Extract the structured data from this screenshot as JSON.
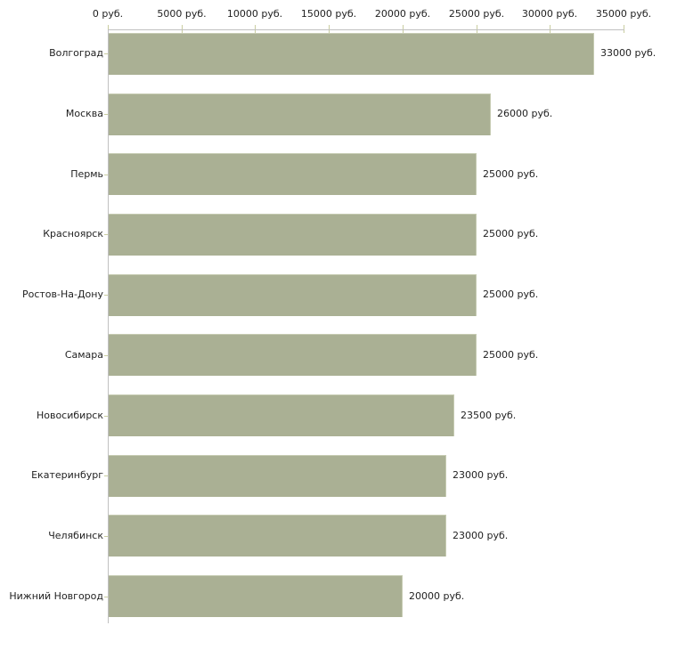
{
  "chart_data": {
    "type": "bar",
    "orientation": "horizontal",
    "title": "",
    "xlabel": "",
    "ylabel": "",
    "grid": "off",
    "legend": "none",
    "xlim": [
      0,
      35000
    ],
    "x_ticks": [
      0,
      5000,
      10000,
      15000,
      20000,
      25000,
      30000,
      35000
    ],
    "x_tick_labels": [
      "0 руб.",
      "5000 руб.",
      "10000 руб.",
      "15000 руб.",
      "20000 руб.",
      "25000 руб.",
      "30000 руб.",
      "35000 руб."
    ],
    "categories": [
      "Волгоград",
      "Москва",
      "Пермь",
      "Красноярск",
      "Ростов-На-Дону",
      "Самара",
      "Новосибирск",
      "Екатеринбург",
      "Челябинск",
      "Нижний Новгород"
    ],
    "values": [
      33000,
      26000,
      25000,
      25000,
      25000,
      25000,
      23500,
      23000,
      23000,
      20000
    ],
    "value_labels": [
      "33000 руб.",
      "26000 руб.",
      "25000 руб.",
      "25000 руб.",
      "25000 руб.",
      "25000 руб.",
      "23500 руб.",
      "23000 руб.",
      "23000 руб.",
      "20000 руб."
    ],
    "colors": {
      "bar_fill": "#aab094",
      "bar_edge": "#c6cbb2",
      "axis_line": "#c0c0c0",
      "tick_mark": "#c9cda0",
      "text": "#1f1f1f",
      "background": "#ffffff"
    }
  }
}
